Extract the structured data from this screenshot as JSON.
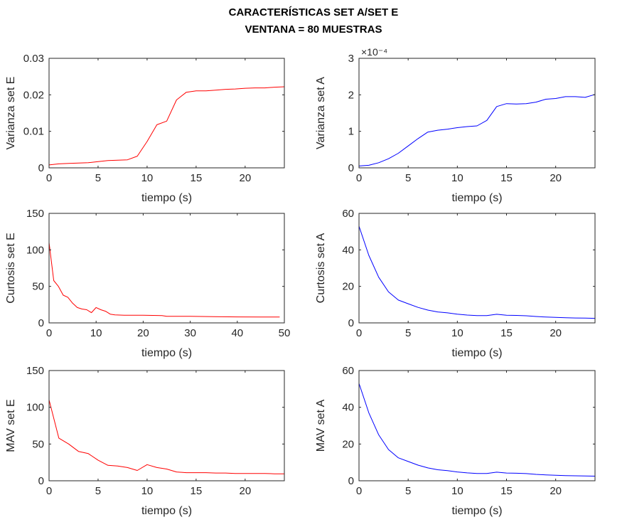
{
  "figure": {
    "title_line1": "CARACTERÍSTICAS SET A/SET E",
    "title_line2": "VENTANA = 80 MUESTRAS"
  },
  "chart_data": [
    {
      "id": "var-e",
      "type": "line",
      "title": "",
      "xlabel": "tiempo (s)",
      "ylabel": "Varianza set E",
      "xlim": [
        0,
        24
      ],
      "ylim": [
        0,
        0.03
      ],
      "xticks": [
        0,
        5,
        10,
        15,
        20
      ],
      "xtick_labels": [
        "0",
        "5",
        "10",
        "15",
        "20"
      ],
      "yticks": [
        0,
        0.01,
        0.02,
        0.03
      ],
      "ytick_labels": [
        "0",
        "0.01",
        "0.02",
        "0.03"
      ],
      "exponent_label": "",
      "series": [
        {
          "color": "#ff0000",
          "x": [
            0,
            1,
            2,
            3,
            4,
            5,
            6,
            7,
            8,
            9,
            10,
            11,
            12,
            13,
            14,
            15,
            16,
            17,
            18,
            19,
            20,
            21,
            22,
            23,
            24
          ],
          "y": [
            0.0008,
            0.0011,
            0.0012,
            0.0013,
            0.0014,
            0.0017,
            0.002,
            0.0021,
            0.0022,
            0.0032,
            0.0072,
            0.0118,
            0.0128,
            0.0186,
            0.0207,
            0.0211,
            0.0211,
            0.0213,
            0.0215,
            0.0216,
            0.0218,
            0.0219,
            0.0219,
            0.0221,
            0.0222
          ]
        }
      ]
    },
    {
      "id": "var-a",
      "type": "line",
      "title": "",
      "xlabel": "tiempo (s)",
      "ylabel": "Varianza set A",
      "xlim": [
        0,
        24
      ],
      "ylim": [
        0,
        3
      ],
      "xticks": [
        0,
        5,
        10,
        15,
        20
      ],
      "xtick_labels": [
        "0",
        "5",
        "10",
        "15",
        "20"
      ],
      "yticks": [
        0,
        1,
        2,
        3
      ],
      "ytick_labels": [
        "0",
        "1",
        "2",
        "3"
      ],
      "exponent_label": "×10⁻⁴",
      "series": [
        {
          "color": "#0000ff",
          "x": [
            0,
            1,
            2,
            3,
            4,
            5,
            6,
            7,
            8,
            9,
            10,
            11,
            12,
            13,
            14,
            15,
            16,
            17,
            18,
            19,
            20,
            21,
            22,
            23,
            24
          ],
          "y": [
            0.05,
            0.07,
            0.14,
            0.25,
            0.4,
            0.6,
            0.8,
            0.98,
            1.03,
            1.06,
            1.1,
            1.13,
            1.15,
            1.3,
            1.68,
            1.76,
            1.75,
            1.76,
            1.8,
            1.88,
            1.9,
            1.95,
            1.95,
            1.93,
            2.01
          ]
        }
      ]
    },
    {
      "id": "curt-e",
      "type": "line",
      "title": "",
      "xlabel": "tiempo (s)",
      "ylabel": "Curtosis set E",
      "xlim": [
        0,
        50
      ],
      "ylim": [
        0,
        150
      ],
      "xticks": [
        0,
        10,
        20,
        30,
        40,
        50
      ],
      "xtick_labels": [
        "0",
        "10",
        "20",
        "30",
        "40",
        "50"
      ],
      "yticks": [
        0,
        50,
        100,
        150
      ],
      "ytick_labels": [
        "0",
        "50",
        "100",
        "150"
      ],
      "exponent_label": "",
      "series": [
        {
          "color": "#ff0000",
          "x": [
            0,
            1,
            2,
            3,
            4,
            5,
            6,
            7,
            8,
            9,
            10,
            11,
            12,
            13,
            14,
            16,
            20,
            24,
            25,
            30,
            35,
            40,
            45,
            49
          ],
          "y": [
            110,
            58,
            50,
            38,
            35,
            27,
            21,
            19,
            18,
            14,
            21,
            18,
            16,
            12,
            11,
            10.5,
            10.5,
            10,
            9,
            9,
            8.5,
            8.2,
            8,
            8
          ]
        }
      ]
    },
    {
      "id": "curt-a",
      "type": "line",
      "title": "",
      "xlabel": "tiempo (s)",
      "ylabel": "Curtosis set A",
      "xlim": [
        0,
        24
      ],
      "ylim": [
        0,
        60
      ],
      "xticks": [
        0,
        5,
        10,
        15,
        20
      ],
      "xtick_labels": [
        "0",
        "5",
        "10",
        "15",
        "20"
      ],
      "yticks": [
        0,
        20,
        40,
        60
      ],
      "ytick_labels": [
        "0",
        "20",
        "40",
        "60"
      ],
      "exponent_label": "",
      "series": [
        {
          "color": "#0000ff",
          "x": [
            0,
            1,
            2,
            3,
            4,
            5,
            6,
            7,
            8,
            9,
            10,
            11,
            12,
            13,
            14,
            15,
            16,
            17,
            18,
            19,
            20,
            21,
            22,
            23,
            24
          ],
          "y": [
            53,
            37,
            25,
            17,
            12.5,
            10.5,
            8.5,
            7,
            6,
            5.5,
            4.8,
            4.3,
            4,
            4,
            4.7,
            4.2,
            4.1,
            3.9,
            3.5,
            3.2,
            3,
            2.8,
            2.7,
            2.6,
            2.5
          ]
        }
      ]
    },
    {
      "id": "mav-e",
      "type": "line",
      "title": "",
      "xlabel": "tiempo (s)",
      "ylabel": "MAV set E",
      "xlim": [
        0,
        24
      ],
      "ylim": [
        0,
        150
      ],
      "xticks": [
        0,
        5,
        10,
        15,
        20
      ],
      "xtick_labels": [
        "0",
        "5",
        "10",
        "15",
        "20"
      ],
      "yticks": [
        0,
        50,
        100,
        150
      ],
      "ytick_labels": [
        "0",
        "50",
        "100",
        "150"
      ],
      "exponent_label": "",
      "series": [
        {
          "color": "#ff0000",
          "x": [
            0,
            1,
            2,
            3,
            4,
            5,
            6,
            7,
            8,
            9,
            10,
            11,
            12,
            13,
            14,
            15,
            16,
            17,
            18,
            19,
            20,
            21,
            22,
            23,
            24
          ],
          "y": [
            110,
            58,
            50,
            40,
            37,
            28,
            21,
            20,
            18,
            14,
            22,
            18,
            16,
            12,
            11,
            11,
            11,
            10.5,
            10.5,
            10,
            10,
            10,
            10,
            9.5,
            9.5
          ]
        }
      ]
    },
    {
      "id": "mav-a",
      "type": "line",
      "title": "",
      "xlabel": "tiempo (s)",
      "ylabel": "MAV set A",
      "xlim": [
        0,
        24
      ],
      "ylim": [
        0,
        60
      ],
      "xticks": [
        0,
        5,
        10,
        15,
        20
      ],
      "xtick_labels": [
        "0",
        "5",
        "10",
        "15",
        "20"
      ],
      "yticks": [
        0,
        20,
        40,
        60
      ],
      "ytick_labels": [
        "0",
        "20",
        "40",
        "60"
      ],
      "exponent_label": "",
      "series": [
        {
          "color": "#0000ff",
          "x": [
            0,
            1,
            2,
            3,
            4,
            5,
            6,
            7,
            8,
            9,
            10,
            11,
            12,
            13,
            14,
            15,
            16,
            17,
            18,
            19,
            20,
            21,
            22,
            23,
            24
          ],
          "y": [
            53,
            37,
            25,
            17,
            12.5,
            10.5,
            8.5,
            7,
            6,
            5.5,
            4.8,
            4.3,
            4,
            4,
            4.7,
            4.2,
            4.1,
            3.9,
            3.5,
            3.2,
            3,
            2.8,
            2.7,
            2.6,
            2.5
          ]
        }
      ]
    }
  ]
}
